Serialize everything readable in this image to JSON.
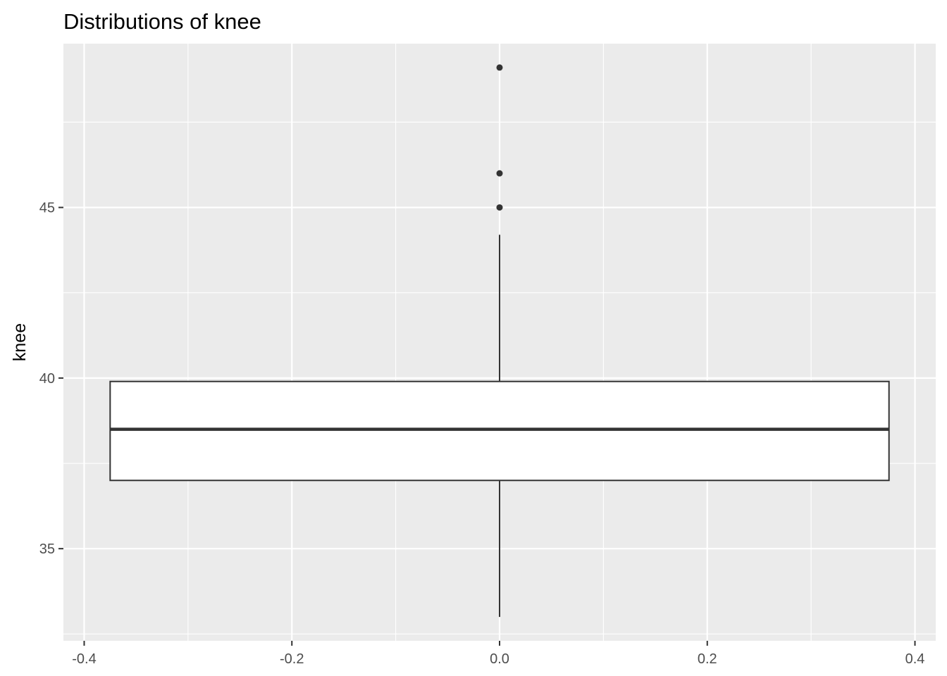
{
  "chart_data": {
    "type": "boxplot",
    "title": "Distributions of knee",
    "xlabel": "",
    "ylabel": "knee",
    "xlim": [
      -0.42,
      0.42
    ],
    "ylim": [
      32.3,
      49.8
    ],
    "x_ticks": [
      -0.4,
      -0.2,
      0.0,
      0.2,
      0.4
    ],
    "x_tick_labels": [
      "-0.4",
      "-0.2",
      "0.0",
      "0.2",
      "0.4"
    ],
    "x_minor_ticks": [
      -0.3,
      -0.1,
      0.1,
      0.3
    ],
    "y_ticks": [
      35,
      40,
      45
    ],
    "y_tick_labels": [
      "35",
      "40",
      "45"
    ],
    "y_minor_ticks": [
      32.5,
      37.5,
      42.5,
      47.5
    ],
    "grid": true,
    "legend": "none",
    "box": {
      "x_center": 0,
      "x_min": -0.375,
      "x_max": 0.375,
      "lower_whisker": 33.0,
      "q1": 37.0,
      "median": 38.5,
      "q3": 39.9,
      "upper_whisker": 44.2,
      "outliers": [
        45.0,
        46.0,
        49.1
      ]
    },
    "colors": {
      "panel": "#ebebeb",
      "grid": "#ffffff",
      "box_fill": "#ffffff",
      "box_line": "#333333",
      "tick_text": "#4d4d4d"
    }
  }
}
